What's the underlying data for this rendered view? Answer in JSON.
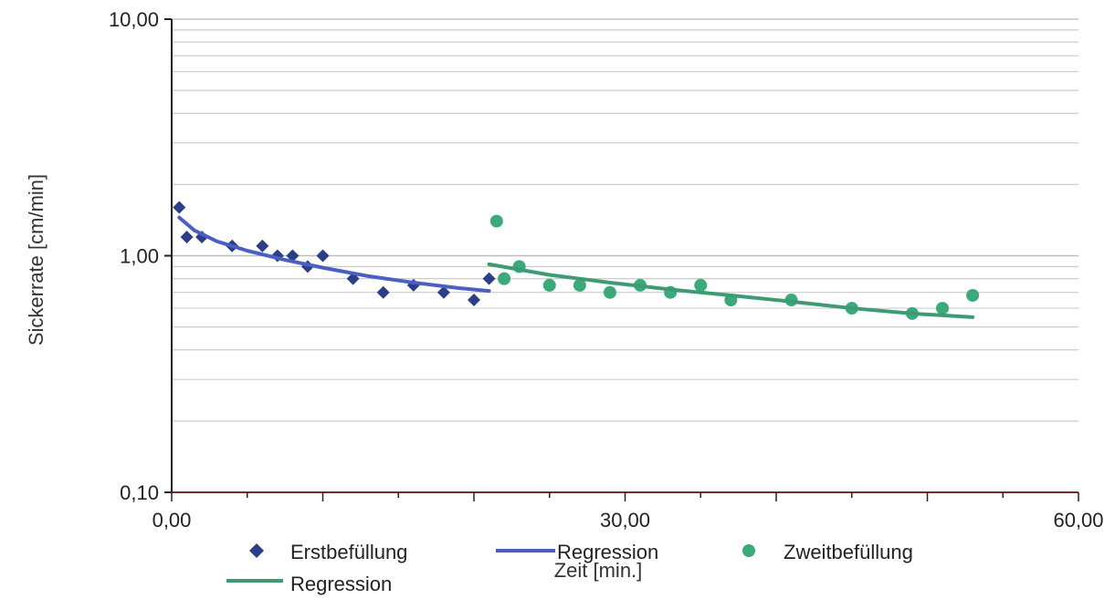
{
  "chart_data": {
    "type": "scatter",
    "x_axis": {
      "label": "Zeit [min.]",
      "range": [
        0,
        60
      ],
      "tick_labels": [
        {
          "value": 0,
          "label": "0,00"
        },
        {
          "value": 30,
          "label": "30,00"
        },
        {
          "value": 60,
          "label": "60,00"
        }
      ]
    },
    "y_axis": {
      "label": "Sickerrate [cm/min]",
      "scale": "log",
      "range": [
        0.1,
        10
      ],
      "tick_labels": [
        {
          "value": 10,
          "label": "10,00"
        },
        {
          "value": 1,
          "label": "1,00"
        },
        {
          "value": 0.1,
          "label": "0,10"
        }
      ]
    },
    "grid": "horizontal-minor",
    "legend_position": "bottom",
    "series": [
      {
        "name": "Erstbefüllung",
        "kind": "points",
        "marker": "diamond",
        "color": "#2b3f86",
        "points": [
          {
            "x": 0.5,
            "y": 1.6
          },
          {
            "x": 1,
            "y": 1.2
          },
          {
            "x": 2,
            "y": 1.2
          },
          {
            "x": 4,
            "y": 1.1
          },
          {
            "x": 6,
            "y": 1.1
          },
          {
            "x": 7,
            "y": 1.0
          },
          {
            "x": 8,
            "y": 1.0
          },
          {
            "x": 9,
            "y": 0.9
          },
          {
            "x": 10,
            "y": 1.0
          },
          {
            "x": 12,
            "y": 0.8
          },
          {
            "x": 14,
            "y": 0.7
          },
          {
            "x": 16,
            "y": 0.75
          },
          {
            "x": 18,
            "y": 0.7
          },
          {
            "x": 20,
            "y": 0.65
          },
          {
            "x": 21,
            "y": 0.8
          }
        ]
      },
      {
        "name": "Regression",
        "kind": "line",
        "color": "#4a5fc1",
        "points": [
          {
            "x": 0.5,
            "y": 1.45
          },
          {
            "x": 1.5,
            "y": 1.28
          },
          {
            "x": 3,
            "y": 1.15
          },
          {
            "x": 5,
            "y": 1.05
          },
          {
            "x": 7.5,
            "y": 0.96
          },
          {
            "x": 10,
            "y": 0.89
          },
          {
            "x": 13,
            "y": 0.82
          },
          {
            "x": 16,
            "y": 0.77
          },
          {
            "x": 19,
            "y": 0.73
          },
          {
            "x": 21,
            "y": 0.71
          }
        ]
      },
      {
        "name": "Zweitbefüllung",
        "kind": "points",
        "marker": "circle",
        "color": "#3aaa7a",
        "points": [
          {
            "x": 21.5,
            "y": 1.4
          },
          {
            "x": 22,
            "y": 0.8
          },
          {
            "x": 23,
            "y": 0.9
          },
          {
            "x": 25,
            "y": 0.75
          },
          {
            "x": 27,
            "y": 0.75
          },
          {
            "x": 29,
            "y": 0.7
          },
          {
            "x": 31,
            "y": 0.75
          },
          {
            "x": 33,
            "y": 0.7
          },
          {
            "x": 35,
            "y": 0.75
          },
          {
            "x": 37,
            "y": 0.65
          },
          {
            "x": 41,
            "y": 0.65
          },
          {
            "x": 45,
            "y": 0.6
          },
          {
            "x": 49,
            "y": 0.57
          },
          {
            "x": 51,
            "y": 0.6
          },
          {
            "x": 53,
            "y": 0.68
          }
        ]
      },
      {
        "name": "Regression",
        "kind": "line",
        "color": "#3c9b73",
        "points": [
          {
            "x": 21,
            "y": 0.92
          },
          {
            "x": 25,
            "y": 0.83
          },
          {
            "x": 29,
            "y": 0.77
          },
          {
            "x": 33,
            "y": 0.72
          },
          {
            "x": 37,
            "y": 0.68
          },
          {
            "x": 41,
            "y": 0.64
          },
          {
            "x": 45,
            "y": 0.6
          },
          {
            "x": 49,
            "y": 0.57
          },
          {
            "x": 53,
            "y": 0.55
          }
        ]
      }
    ]
  }
}
